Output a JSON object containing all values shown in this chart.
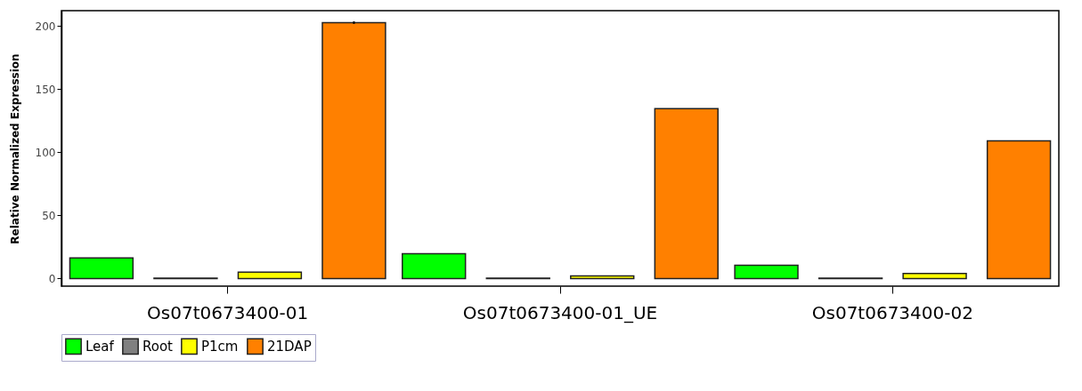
{
  "chart_data": {
    "type": "bar",
    "ylabel": "Relative Normalized Expression",
    "categories": [
      "Os07t0673400-01",
      "Os07t0673400-01_UE",
      "Os07t0673400-02"
    ],
    "series": [
      {
        "name": "Leaf",
        "color": "#00ff00",
        "values": [
          16.4,
          19.6,
          10.5
        ]
      },
      {
        "name": "Root",
        "color": "#808080",
        "values": [
          0.3,
          0.3,
          0.3
        ]
      },
      {
        "name": "P1cm",
        "color": "#ffff00",
        "values": [
          5,
          2,
          4
        ]
      },
      {
        "name": "21DAP",
        "color": "#ff8000",
        "values": [
          202.5,
          134.5,
          109
        ],
        "errors": [
          1,
          null,
          null
        ]
      }
    ],
    "ylim": [
      -6,
      212
    ],
    "yticks": [
      0,
      50,
      100,
      150,
      200
    ],
    "grid": false,
    "legend": "bottom"
  }
}
